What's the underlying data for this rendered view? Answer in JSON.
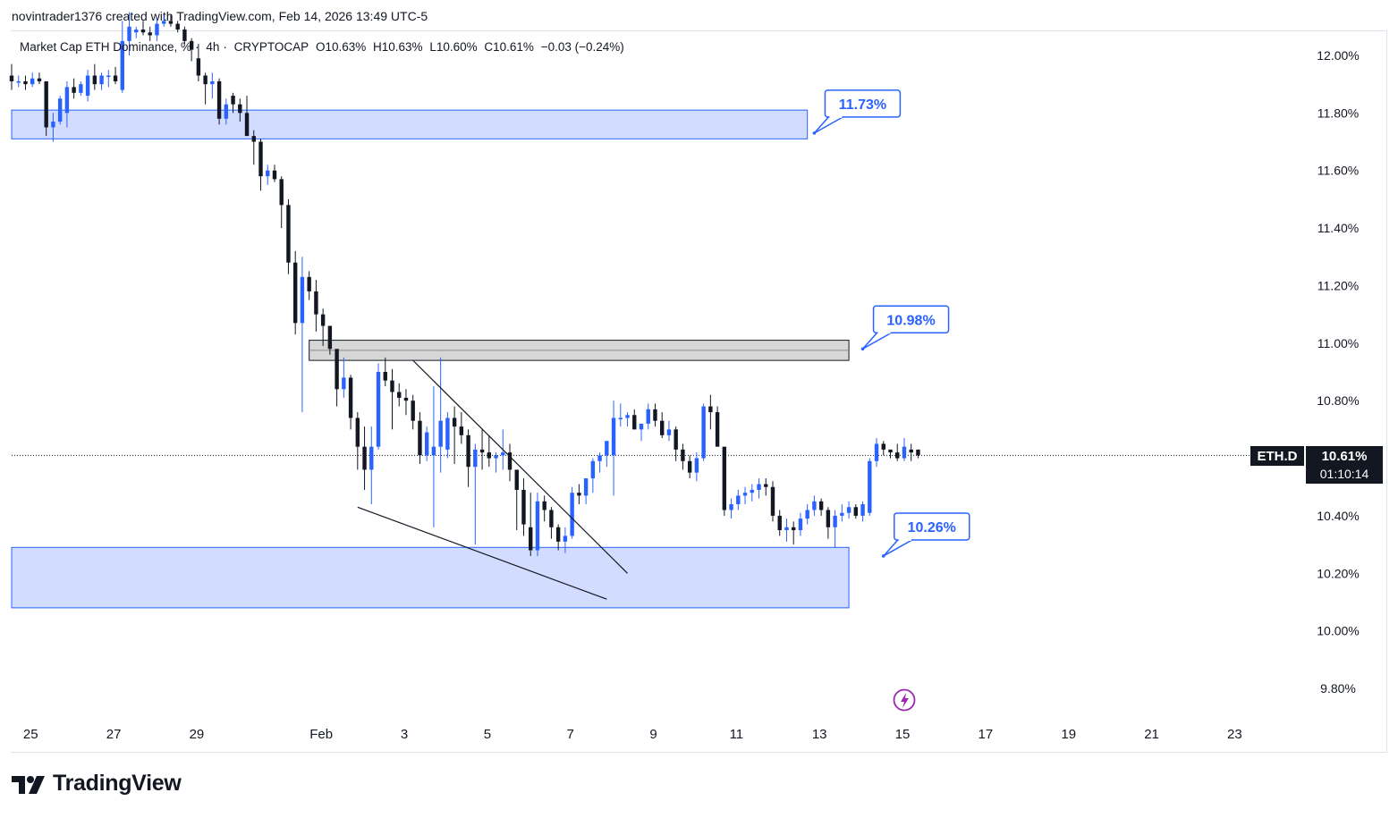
{
  "header": {
    "attribution": "novintrader1376 created with TradingView.com, Feb 14, 2026 13:49 UTC-5"
  },
  "legend": {
    "symbol_name": "Market Cap ETH Dominance, %",
    "interval": "4h",
    "exchange": "CRYPTOCAP",
    "open": "O10.63%",
    "high": "H10.63%",
    "low": "L10.60%",
    "close": "C10.61%",
    "change": "−0.03 (−0.24%)"
  },
  "current_price": {
    "symbol": "ETH.D",
    "price": "10.61%",
    "countdown": "01:10:14"
  },
  "brand": {
    "name": "TradingView"
  },
  "colors": {
    "up": "#2962ff",
    "down": "#131722",
    "zone_fill": "#d1dcff",
    "zone_border": "#2962ff",
    "gray_zone_fill": "#d7d7d7",
    "gray_zone_border": "#131722",
    "callout": "#2962ff",
    "lightning": "#9c27b0"
  },
  "icons": {
    "lightning": "lightning-icon",
    "logo": "tradingview-logo-icon"
  },
  "chart_data": {
    "type": "candlestick",
    "title": "Market Cap ETH Dominance",
    "unit": "%",
    "timeframe": "4h",
    "y_range": [
      9.75,
      12.15
    ],
    "y_ticks": [
      "12.00%",
      "11.80%",
      "11.60%",
      "11.40%",
      "11.20%",
      "11.00%",
      "10.80%",
      "10.40%",
      "10.20%",
      "10.00%",
      "9.80%"
    ],
    "y_tick_values": [
      12.0,
      11.8,
      11.6,
      11.4,
      11.2,
      11.0,
      10.8,
      10.4,
      10.2,
      10.0,
      9.8
    ],
    "x_range": [
      "Jan 24 13:00",
      "Feb 24 12:00"
    ],
    "x_ticks": [
      {
        "label": "25",
        "date": "Jan 25"
      },
      {
        "label": "27",
        "date": "Jan 27"
      },
      {
        "label": "29",
        "date": "Jan 29"
      },
      {
        "label": "Feb",
        "date": "Feb 1"
      },
      {
        "label": "3",
        "date": "Feb 3"
      },
      {
        "label": "5",
        "date": "Feb 5"
      },
      {
        "label": "7",
        "date": "Feb 7"
      },
      {
        "label": "9",
        "date": "Feb 9"
      },
      {
        "label": "11",
        "date": "Feb 11"
      },
      {
        "label": "13",
        "date": "Feb 13"
      },
      {
        "label": "15",
        "date": "Feb 15"
      },
      {
        "label": "17",
        "date": "Feb 17"
      },
      {
        "label": "19",
        "date": "Feb 19"
      },
      {
        "label": "21",
        "date": "Feb 21"
      },
      {
        "label": "23",
        "date": "Feb 23"
      }
    ],
    "candles_ohlc": [
      [
        11.93,
        11.97,
        11.88,
        11.91
      ],
      [
        11.91,
        11.93,
        11.89,
        11.91
      ],
      [
        11.91,
        11.93,
        11.88,
        11.9
      ],
      [
        11.9,
        11.94,
        11.89,
        11.92
      ],
      [
        11.92,
        11.94,
        11.9,
        11.91
      ],
      [
        11.91,
        11.91,
        11.72,
        11.75
      ],
      [
        11.75,
        11.8,
        11.7,
        11.77
      ],
      [
        11.77,
        11.86,
        11.76,
        11.85
      ],
      [
        11.8,
        11.91,
        11.75,
        11.89
      ],
      [
        11.89,
        11.92,
        11.85,
        11.87
      ],
      [
        11.87,
        11.91,
        11.86,
        11.9
      ],
      [
        11.86,
        11.95,
        11.84,
        11.93
      ],
      [
        11.93,
        11.97,
        11.88,
        11.9
      ],
      [
        11.9,
        11.94,
        11.88,
        11.93
      ],
      [
        11.93,
        11.95,
        11.89,
        11.93
      ],
      [
        11.93,
        11.96,
        11.9,
        11.91
      ],
      [
        11.88,
        12.12,
        11.87,
        12.05
      ],
      [
        12.05,
        12.15,
        12.0,
        12.1
      ],
      [
        12.08,
        12.1,
        12.06,
        12.09
      ],
      [
        12.09,
        12.12,
        12.07,
        12.08
      ],
      [
        12.08,
        12.1,
        12.05,
        12.07
      ],
      [
        12.07,
        12.13,
        12.05,
        12.11
      ],
      [
        12.11,
        12.14,
        12.1,
        12.12
      ],
      [
        12.12,
        12.14,
        12.1,
        12.11
      ],
      [
        12.11,
        12.12,
        12.08,
        12.09
      ],
      [
        12.09,
        12.1,
        12.04,
        12.05
      ],
      [
        12.05,
        12.06,
        11.98,
        12.02
      ],
      [
        11.99,
        12.04,
        11.91,
        11.93
      ],
      [
        11.93,
        11.94,
        11.83,
        11.9
      ],
      [
        11.9,
        11.94,
        11.85,
        11.91
      ],
      [
        11.91,
        11.92,
        11.76,
        11.78
      ],
      [
        11.78,
        11.85,
        11.76,
        11.83
      ],
      [
        11.86,
        11.87,
        11.8,
        11.83
      ],
      [
        11.83,
        11.85,
        11.77,
        11.8
      ],
      [
        11.8,
        11.86,
        11.76,
        11.72
      ],
      [
        11.72,
        11.74,
        11.62,
        11.7
      ],
      [
        11.7,
        11.71,
        11.53,
        11.58
      ],
      [
        11.58,
        11.62,
        11.55,
        11.6
      ],
      [
        11.6,
        11.62,
        11.56,
        11.57
      ],
      [
        11.57,
        11.58,
        11.4,
        11.48
      ],
      [
        11.48,
        11.5,
        11.24,
        11.28
      ],
      [
        11.28,
        11.32,
        11.03,
        11.07
      ],
      [
        11.07,
        11.3,
        10.76,
        11.23
      ],
      [
        11.23,
        11.25,
        11.15,
        11.18
      ],
      [
        11.18,
        11.22,
        11.04,
        11.1
      ],
      [
        11.1,
        11.12,
        10.99,
        11.06
      ],
      [
        11.06,
        11.04,
        10.96,
        10.98
      ],
      [
        10.98,
        10.96,
        10.78,
        10.84
      ],
      [
        10.84,
        10.95,
        10.81,
        10.88
      ],
      [
        10.88,
        10.89,
        10.7,
        10.74
      ],
      [
        10.74,
        10.76,
        10.56,
        10.64
      ],
      [
        10.64,
        10.71,
        10.49,
        10.56
      ],
      [
        10.56,
        10.71,
        10.44,
        10.64
      ],
      [
        10.64,
        10.93,
        10.63,
        10.9
      ],
      [
        10.9,
        10.95,
        10.85,
        10.87
      ],
      [
        10.87,
        10.91,
        10.7,
        10.83
      ],
      [
        10.83,
        10.86,
        10.78,
        10.81
      ],
      [
        10.81,
        10.84,
        10.75,
        10.8
      ],
      [
        10.8,
        10.82,
        10.7,
        10.73
      ],
      [
        10.73,
        10.76,
        10.58,
        10.61
      ],
      [
        10.61,
        10.71,
        10.59,
        10.69
      ],
      [
        10.61,
        10.85,
        10.36,
        10.64
      ],
      [
        10.64,
        10.95,
        10.55,
        10.73
      ],
      [
        10.63,
        10.76,
        10.6,
        10.74
      ],
      [
        10.74,
        10.78,
        10.58,
        10.71
      ],
      [
        10.71,
        10.76,
        10.65,
        10.68
      ],
      [
        10.68,
        10.7,
        10.5,
        10.57
      ],
      [
        10.57,
        10.65,
        10.3,
        10.63
      ],
      [
        10.63,
        10.7,
        10.56,
        10.62
      ],
      [
        10.62,
        10.68,
        10.57,
        10.6
      ],
      [
        10.6,
        10.62,
        10.55,
        10.61
      ],
      [
        10.61,
        10.7,
        10.56,
        10.62
      ],
      [
        10.62,
        10.65,
        10.52,
        10.56
      ],
      [
        10.56,
        10.53,
        10.35,
        10.49
      ],
      [
        10.49,
        10.53,
        10.33,
        10.37
      ],
      [
        10.36,
        10.48,
        10.26,
        10.28
      ],
      [
        10.28,
        10.48,
        10.26,
        10.45
      ],
      [
        10.45,
        10.47,
        10.38,
        10.42
      ],
      [
        10.42,
        10.43,
        10.32,
        10.36
      ],
      [
        10.36,
        10.37,
        10.28,
        10.31
      ],
      [
        10.31,
        10.36,
        10.27,
        10.33
      ],
      [
        10.33,
        10.5,
        10.32,
        10.48
      ],
      [
        10.48,
        10.51,
        10.44,
        10.47
      ],
      [
        10.47,
        10.51,
        10.44,
        10.53
      ],
      [
        10.53,
        10.6,
        10.48,
        10.59
      ],
      [
        10.59,
        10.62,
        10.55,
        10.61
      ],
      [
        10.61,
        10.66,
        10.57,
        10.66
      ],
      [
        10.61,
        10.8,
        10.47,
        10.74
      ],
      [
        10.74,
        10.79,
        10.71,
        10.74
      ],
      [
        10.74,
        10.76,
        10.71,
        10.75
      ],
      [
        10.75,
        10.77,
        10.71,
        10.7
      ],
      [
        10.7,
        10.72,
        10.66,
        10.72
      ],
      [
        10.72,
        10.79,
        10.7,
        10.77
      ],
      [
        10.77,
        10.79,
        10.71,
        10.73
      ],
      [
        10.73,
        10.76,
        10.67,
        10.68
      ],
      [
        10.68,
        10.73,
        10.66,
        10.7
      ],
      [
        10.7,
        10.71,
        10.59,
        10.63
      ],
      [
        10.63,
        10.65,
        10.56,
        10.59
      ],
      [
        10.59,
        10.61,
        10.53,
        10.55
      ],
      [
        10.55,
        10.62,
        10.52,
        10.6
      ],
      [
        10.6,
        10.79,
        10.59,
        10.78
      ],
      [
        10.78,
        10.82,
        10.7,
        10.76
      ],
      [
        10.76,
        10.78,
        10.65,
        10.64
      ],
      [
        10.64,
        10.62,
        10.4,
        10.42
      ],
      [
        10.42,
        10.46,
        10.39,
        10.44
      ],
      [
        10.44,
        10.49,
        10.42,
        10.47
      ],
      [
        10.47,
        10.5,
        10.44,
        10.48
      ],
      [
        10.48,
        10.51,
        10.45,
        10.49
      ],
      [
        10.49,
        10.53,
        10.46,
        10.51
      ],
      [
        10.51,
        10.53,
        10.47,
        10.5
      ],
      [
        10.5,
        10.52,
        10.38,
        10.4
      ],
      [
        10.4,
        10.42,
        10.33,
        10.35
      ],
      [
        10.35,
        10.39,
        10.31,
        10.36
      ],
      [
        10.36,
        10.38,
        10.3,
        10.35
      ],
      [
        10.35,
        10.41,
        10.33,
        10.39
      ],
      [
        10.39,
        10.44,
        10.37,
        10.42
      ],
      [
        10.42,
        10.47,
        10.4,
        10.45
      ],
      [
        10.45,
        10.46,
        10.4,
        10.42
      ],
      [
        10.42,
        10.43,
        10.32,
        10.36
      ],
      [
        10.36,
        10.42,
        10.29,
        10.4
      ],
      [
        10.4,
        10.44,
        10.38,
        10.41
      ],
      [
        10.41,
        10.45,
        10.39,
        10.43
      ],
      [
        10.43,
        10.44,
        10.39,
        10.4
      ],
      [
        10.4,
        10.45,
        10.38,
        10.44
      ],
      [
        10.41,
        10.6,
        10.4,
        10.59
      ],
      [
        10.59,
        10.67,
        10.57,
        10.65
      ],
      [
        10.65,
        10.66,
        10.61,
        10.63
      ],
      [
        10.63,
        10.63,
        10.6,
        10.62
      ],
      [
        10.62,
        10.65,
        10.59,
        10.6
      ],
      [
        10.6,
        10.67,
        10.59,
        10.64
      ],
      [
        10.63,
        10.65,
        10.59,
        10.62
      ],
      [
        10.63,
        10.63,
        10.6,
        10.61
      ]
    ],
    "zones": [
      {
        "name": "upper-zone",
        "top": 11.81,
        "bottom": 11.71,
        "x_start": "Jan 24 13:00",
        "x_end": "Feb 12 17:00"
      },
      {
        "name": "middle-zone",
        "top": 11.01,
        "bottom": 10.94,
        "x_start": "Jan 31 17:00",
        "x_end": "Feb 13 17:00"
      },
      {
        "name": "lower-zone",
        "top": 10.29,
        "bottom": 10.08,
        "x_start": "Jan 24 13:00",
        "x_end": "Feb 13 17:00"
      }
    ],
    "trendlines": [
      {
        "name": "upper-trendline",
        "from": [
          "Feb 3 05:00",
          10.94
        ],
        "to": [
          "Feb 8 09:00",
          10.2
        ]
      },
      {
        "name": "lower-trendline",
        "from": [
          "Feb 1 21:00",
          10.43
        ],
        "to": [
          "Feb 7 21:00",
          10.11
        ]
      }
    ],
    "callouts": [
      {
        "name": "callout-upper",
        "label": "11.73%",
        "value": 11.73,
        "x": "Feb 12 21:00"
      },
      {
        "name": "callout-middle",
        "label": "10.98%",
        "value": 10.98,
        "x": "Feb 14 01:00"
      },
      {
        "name": "callout-lower",
        "label": "10.26%",
        "value": 10.26,
        "x": "Feb 14 13:00"
      }
    ],
    "last_price": 10.61
  }
}
